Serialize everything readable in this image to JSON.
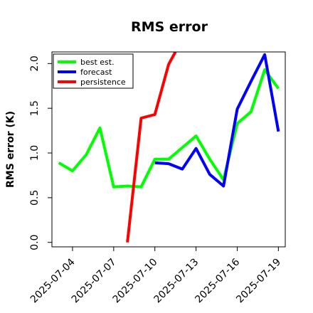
{
  "chart_data": {
    "type": "line",
    "title": "RMS error",
    "ylabel": "RMS error (K)",
    "xlabel": "",
    "ylim": [
      -0.05,
      2.13
    ],
    "xlim": [
      "2025-07-02T12:00",
      "2025-07-19T12:00"
    ],
    "y_ticks": [
      0.0,
      0.5,
      1.0,
      1.5,
      2.0
    ],
    "y_tick_labels": [
      "0.0",
      "0.5",
      "1.0",
      "1.5",
      "2.0"
    ],
    "x_ticks": [
      "2025-07-04",
      "2025-07-07",
      "2025-07-10",
      "2025-07-13",
      "2025-07-16",
      "2025-07-19"
    ],
    "x_tick_labels": [
      "2025-07-04",
      "2025-07-07",
      "2025-07-10",
      "2025-07-13",
      "2025-07-16",
      "2025-07-19"
    ],
    "x_tick_label_colors": [
      "#000000",
      "#000000",
      "#008000",
      "#000000",
      "#000000",
      "#000000"
    ],
    "grid": false,
    "legend_position": "top-left",
    "series": [
      {
        "name": "best est.",
        "color": "#00ff00",
        "x": [
          "2025-07-03",
          "2025-07-04",
          "2025-07-05",
          "2025-07-06",
          "2025-07-07",
          "2025-07-08",
          "2025-07-09",
          "2025-07-10",
          "2025-07-11",
          "2025-07-12",
          "2025-07-13",
          "2025-07-14",
          "2025-07-15",
          "2025-07-16",
          "2025-07-17",
          "2025-07-18",
          "2025-07-19"
        ],
        "values": [
          0.89,
          0.8,
          0.98,
          1.28,
          0.62,
          0.63,
          0.62,
          0.93,
          0.93,
          1.06,
          1.19,
          0.93,
          0.7,
          1.33,
          1.46,
          1.93,
          1.72
        ]
      },
      {
        "name": "forecast",
        "color": "#0000ff",
        "x": [
          "2025-07-10",
          "2025-07-11",
          "2025-07-12",
          "2025-07-13",
          "2025-07-14",
          "2025-07-15",
          "2025-07-16",
          "2025-07-17",
          "2025-07-18",
          "2025-07-19"
        ],
        "values": [
          0.89,
          0.88,
          0.82,
          1.05,
          0.76,
          0.63,
          1.49,
          1.8,
          2.1,
          1.24
        ]
      },
      {
        "name": "persistence",
        "color": "#ff0000",
        "x": [
          "2025-07-08",
          "2025-07-09",
          "2025-07-10",
          "2025-07-11",
          "2025-07-11T12:00"
        ],
        "values": [
          0.0,
          1.39,
          1.43,
          1.99,
          2.13
        ]
      }
    ]
  }
}
